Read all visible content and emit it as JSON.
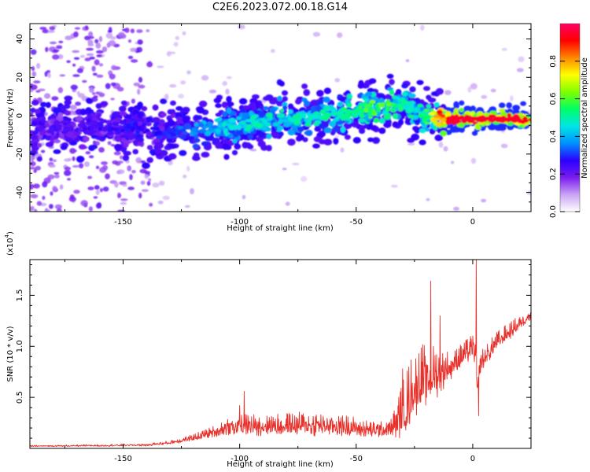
{
  "title": "C2E6.2023.072.00.18.G14",
  "chart_data": [
    {
      "type": "heatmap",
      "title": "C2E6.2023.072.00.18.G14",
      "xlabel": "Height of straight line (km)",
      "ylabel": "Frequency (Hz)",
      "xlim": [
        -190,
        25
      ],
      "ylim": [
        -50,
        48
      ],
      "x_ticks": [
        -150,
        -100,
        -50,
        0
      ],
      "x_tick_labels": [
        "-150",
        "-100",
        "-50",
        "0"
      ],
      "y_ticks": [
        -40,
        -20,
        0,
        20,
        40
      ],
      "y_tick_labels": [
        "-40",
        "-20",
        "0",
        "20",
        "40"
      ],
      "colorbar": {
        "label": "Normalized spectral amplitude",
        "range": [
          0,
          1
        ],
        "ticks": [
          0.0,
          0.2,
          0.4,
          0.6,
          0.8
        ],
        "tick_labels": [
          "0.0",
          "0.2",
          "0.4",
          "0.6",
          "0.8"
        ],
        "colormap": [
          "#ffffff",
          "#c9a3f5",
          "#7a1cf0",
          "#2a00ff",
          "#0090ff",
          "#00e5e5",
          "#00ff66",
          "#7fff00",
          "#ffff00",
          "#ff8800",
          "#ff0000",
          "#ff0066"
        ]
      },
      "ridge": {
        "x": [
          -190,
          -170,
          -150,
          -138,
          -130,
          -120,
          -110,
          -100,
          -90,
          -80,
          -70,
          -60,
          -50,
          -45,
          -40,
          -35,
          -30,
          -25,
          -20,
          -15,
          -10,
          0,
          10,
          20,
          25
        ],
        "frequency": [
          -6,
          -6,
          -6,
          -8,
          -9,
          -8,
          -6,
          -5,
          -3,
          -2,
          -1,
          1,
          2,
          3,
          4,
          5,
          6,
          3,
          -1,
          -2,
          -2,
          -2,
          -1,
          -2,
          -2
        ],
        "amplitude": [
          0.25,
          0.25,
          0.28,
          0.3,
          0.3,
          0.38,
          0.45,
          0.48,
          0.5,
          0.5,
          0.52,
          0.52,
          0.55,
          0.6,
          0.62,
          0.6,
          0.55,
          0.5,
          0.55,
          0.85,
          0.95,
          0.95,
          0.95,
          0.95,
          0.9
        ]
      },
      "grid": false
    },
    {
      "type": "line",
      "xlabel": "Height of straight line (km)",
      "ylabel": "SNR (10 * v/v)",
      "y_multiplier_label": "(x10",
      "y_multiplier_exp": "4",
      "y_multiplier_close": ")",
      "xlim": [
        -190,
        25
      ],
      "ylim": [
        0,
        18500
      ],
      "x_ticks": [
        -150,
        -100,
        -50,
        0
      ],
      "x_tick_labels": [
        "-150",
        "-100",
        "-50",
        "0"
      ],
      "y_ticks": [
        5000,
        10000,
        15000
      ],
      "y_tick_labels": [
        "0.5",
        "1.0",
        "1.5"
      ],
      "line_color": "#e8312b",
      "envelope": {
        "x": [
          -190,
          -160,
          -140,
          -130,
          -120,
          -110,
          -105,
          -100,
          -90,
          -80,
          -70,
          -60,
          -50,
          -45,
          -40,
          -35,
          -31,
          -28,
          -25,
          -20,
          -15,
          -10,
          -5,
          0,
          1,
          2,
          3,
          5,
          10,
          15,
          20,
          25
        ],
        "base": [
          200,
          250,
          300,
          500,
          900,
          1500,
          1800,
          1900,
          1900,
          1900,
          1900,
          1900,
          1700,
          1500,
          1500,
          1600,
          2500,
          3500,
          5000,
          6000,
          6500,
          7500,
          8500,
          9500,
          9000,
          5000,
          8000,
          8500,
          10000,
          11000,
          12000,
          13000
        ],
        "amp": [
          150,
          200,
          250,
          400,
          700,
          1200,
          1800,
          2200,
          2300,
          2300,
          2500,
          2400,
          2000,
          1800,
          1700,
          2000,
          5000,
          6500,
          7000,
          6500,
          5000,
          3000,
          2500,
          2500,
          3000,
          2500,
          2500,
          2000,
          2000,
          1800,
          1500,
          1200
        ]
      },
      "peaks": [
        {
          "x": -100,
          "y": 4200
        },
        {
          "x": -98,
          "y": 5600
        },
        {
          "x": -30,
          "y": 7800
        },
        {
          "x": -18,
          "y": 16400
        },
        {
          "x": -14,
          "y": 13000
        },
        {
          "x": 1.5,
          "y": 18500
        },
        {
          "x": 2.5,
          "y": 3200
        }
      ],
      "grid": false
    }
  ]
}
